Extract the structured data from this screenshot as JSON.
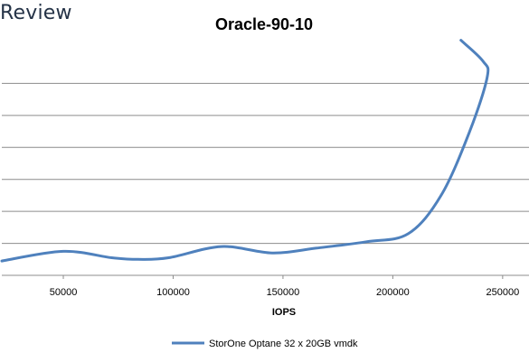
{
  "brand": {
    "text": "Review"
  },
  "chart_data": {
    "type": "line",
    "title": "Oracle-90-10",
    "xlabel": "IOPS",
    "ylabel": "",
    "xlim": [
      22000,
      262000
    ],
    "ylim": [
      0,
      7
    ],
    "x_ticks": [
      50000,
      100000,
      150000,
      200000,
      250000
    ],
    "x_tick_labels": [
      "50000",
      "100000",
      "150000",
      "200000",
      "250000"
    ],
    "y_gridlines": [
      1,
      2,
      3,
      4,
      5,
      6
    ],
    "grid": true,
    "legend": "bottom",
    "series": [
      {
        "name": "StorOne Optane 32 x 20GB vmdk",
        "color": "#4f81bd",
        "x": [
          22000,
          50000,
          72000,
          84000,
          98000,
          122000,
          145000,
          165000,
          188000,
          207000,
          222000,
          235000,
          243000,
          241000,
          231000
        ],
        "y": [
          0.45,
          0.75,
          0.55,
          0.5,
          0.55,
          0.9,
          0.7,
          0.85,
          1.05,
          1.3,
          2.5,
          4.5,
          6.2,
          6.7,
          7.35
        ]
      }
    ]
  }
}
